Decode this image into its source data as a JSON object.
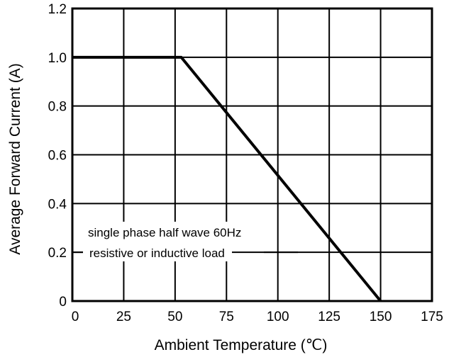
{
  "chart_data": {
    "type": "line",
    "title": "",
    "xlabel": "Ambient Temperature (℃)",
    "ylabel": "Average Forward Current (A)",
    "xlim": [
      0,
      175
    ],
    "ylim": [
      0,
      1.2
    ],
    "x_ticks": [
      0,
      25,
      50,
      75,
      100,
      125,
      150,
      175
    ],
    "x_tick_labels": [
      "0",
      "25",
      "50",
      "75",
      "100",
      "125",
      "150",
      "175"
    ],
    "y_ticks": [
      0,
      0.2,
      0.4,
      0.6,
      0.8,
      1.0,
      1.2
    ],
    "y_tick_labels": [
      "0",
      "0.2",
      "0.4",
      "0.6",
      "0.8",
      "1.0",
      "1.2"
    ],
    "grid": true,
    "series": [
      {
        "x": [
          0,
          53,
          150
        ],
        "y": [
          1.0,
          1.0,
          0
        ]
      }
    ],
    "annotations": [
      "single phase half wave 60Hz",
      "resistive or inductive load"
    ]
  }
}
